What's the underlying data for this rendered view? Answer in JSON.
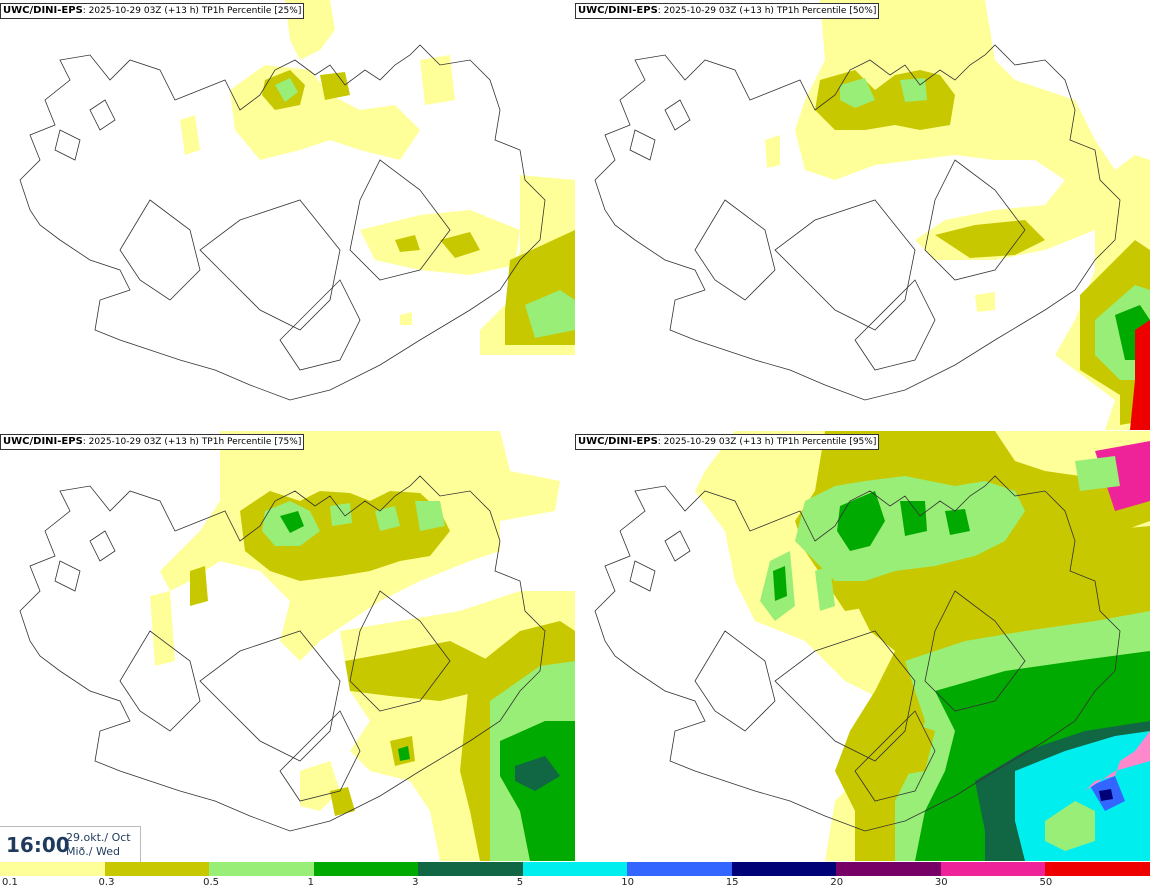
{
  "panels": [
    {
      "model": "UWC/DINI-EPS",
      "run": "2025-10-29 03Z",
      "lead": "(+13 h)",
      "param": "TP1h Percentile",
      "pct": "[25%]"
    },
    {
      "model": "UWC/DINI-EPS",
      "run": "2025-10-29 03Z",
      "lead": "(+13 h)",
      "param": "TP1h Percentile",
      "pct": "[50%]"
    },
    {
      "model": "UWC/DINI-EPS",
      "run": "2025-10-29 03Z",
      "lead": "(+13 h)",
      "param": "TP1h Percentile",
      "pct": "[75%]"
    },
    {
      "model": "UWC/DINI-EPS",
      "run": "2025-10-29 03Z",
      "lead": "(+13 h)",
      "param": "TP1h Percentile",
      "pct": "[95%]"
    }
  ],
  "timebox": {
    "time": "16:00",
    "date_line1": "29.okt./ Oct",
    "date_line2": "Mið./ Wed"
  },
  "legend": {
    "labels": [
      "0.1",
      "0.3",
      "0.5",
      "1",
      "3",
      "5",
      "10",
      "15",
      "20",
      "30",
      "50"
    ],
    "colors": [
      "#ffff99",
      "#c8c800",
      "#99ee77",
      "#00aa00",
      "#116644",
      "#00eeee",
      "#3366ff",
      "#000077",
      "#770066",
      "#ee2299",
      "#ee0000"
    ]
  }
}
